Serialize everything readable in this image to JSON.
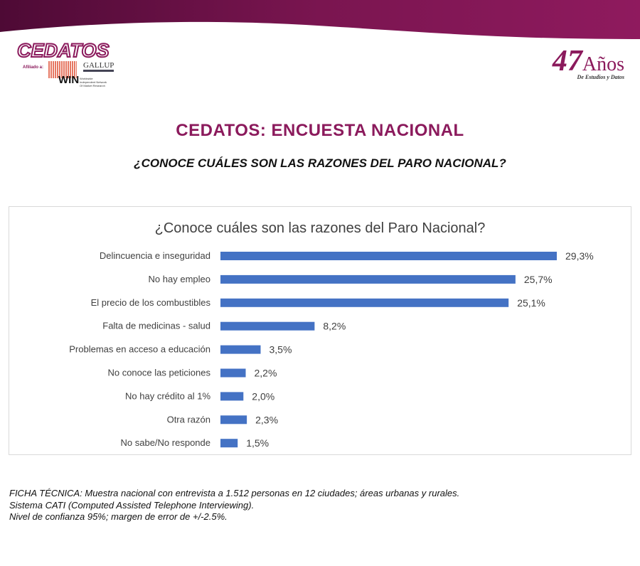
{
  "header": {
    "logo_text": "CEDATOS",
    "affiliate_label": "Afiliado a:",
    "gallup": "GALLUP",
    "win": "WIN",
    "win_sub": "Worldwide Independent Network Of Market Research",
    "anniversary_number": "47",
    "anniversary_word": "Años",
    "anniversary_sub": "De Estudios y Datos",
    "brand_color": "#8b1a5c"
  },
  "title": "CEDATOS: ENCUESTA NACIONAL",
  "subtitle": "¿CONOCE CUÁLES SON LAS RAZONES DEL PARO NACIONAL?",
  "chart_data": {
    "type": "bar",
    "orientation": "horizontal",
    "title": "¿Conoce cuáles son las razones del Paro Nacional?",
    "categories": [
      "Delincuencia e inseguridad",
      "No hay empleo",
      "El precio de los combustibles",
      "Falta de medicinas - salud",
      "Problemas en acceso a educación",
      "No conoce las peticiones",
      "No hay crédito al 1%",
      "Otra razón",
      "No sabe/No responde"
    ],
    "values": [
      29.3,
      25.7,
      25.1,
      8.2,
      3.5,
      2.2,
      2.0,
      2.3,
      1.5
    ],
    "labels": [
      "29,3%",
      "25,7%",
      "25,1%",
      "8,2%",
      "3,5%",
      "2,2%",
      "2,0%",
      "2,3%",
      "1,5%"
    ],
    "bar_color": "#4472c4",
    "grid": false,
    "xlim": [
      0,
      30
    ]
  },
  "footer": [
    "FICHA TÉCNICA: Muestra nacional con entrevista a 1.512 personas en 12 ciudades; áreas urbanas y rurales.",
    "Sistema CATI (Computed Assisted Telephone Interviewing).",
    "Nivel de confianza 95%; margen de error de +/-2.5%."
  ]
}
